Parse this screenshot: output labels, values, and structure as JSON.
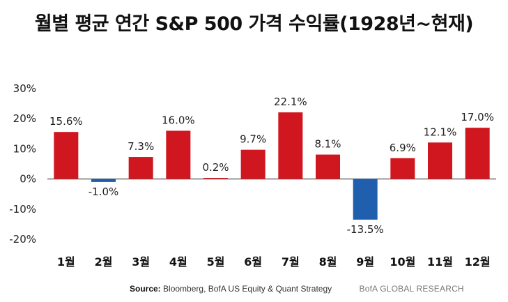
{
  "title": "월별 평균 연간 S&P 500 가격 수익률(1928년~현재)",
  "source": {
    "label": "Source:",
    "text": "Bloomberg, BofA US Equity & Quant Strategy",
    "brand": "BofA GLOBAL RESEARCH"
  },
  "chart_data": {
    "type": "bar",
    "title": "월별 평균 연간 S&P 500 가격 수익률(1928년~현재)",
    "categories": [
      "1월",
      "2월",
      "3월",
      "4월",
      "5월",
      "6월",
      "7월",
      "8월",
      "9월",
      "10월",
      "11월",
      "12월"
    ],
    "values": [
      15.6,
      -1.0,
      7.3,
      16.0,
      0.2,
      9.7,
      22.1,
      8.1,
      -13.5,
      6.9,
      12.1,
      17.0
    ],
    "data_labels": [
      "15.6%",
      "-1.0%",
      "7.3%",
      "16.0%",
      "0.2%",
      "9.7%",
      "22.1%",
      "8.1%",
      "-13.5%",
      "6.9%",
      "12.1%",
      "17.0%"
    ],
    "yticks": [
      30,
      20,
      10,
      0,
      -10,
      -20
    ],
    "ytick_labels": [
      "30%",
      "20%",
      "10%",
      "0%",
      "-10%",
      "-20%"
    ],
    "ylim": [
      -20,
      30
    ],
    "grid": false,
    "colors": {
      "positive": "#d0161e",
      "negative": "#1f5fae",
      "axis": "#555555"
    }
  }
}
